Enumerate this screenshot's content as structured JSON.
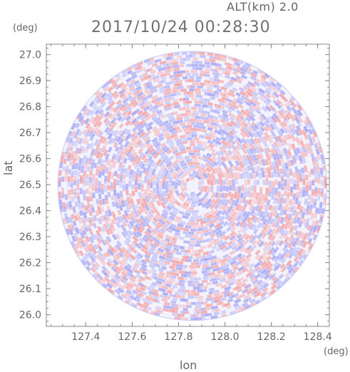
{
  "header": {
    "altitude_label": "ALT(km) 2.0",
    "timestamp": "2017/10/24 00:28:30"
  },
  "chart_data": {
    "type": "heatmap",
    "title": "2017/10/24 00:28:30",
    "xlabel": "lon",
    "ylabel": "lat",
    "x_unit": "(deg)",
    "y_unit": "(deg)",
    "xlim": [
      127.23,
      128.45
    ],
    "ylim": [
      25.955,
      27.04
    ],
    "x_ticks": [
      "127.4",
      "127.6",
      "127.8",
      "128.0",
      "128.2",
      "128.4"
    ],
    "x_tick_values": [
      127.4,
      127.6,
      127.8,
      128.0,
      128.2,
      128.4
    ],
    "y_ticks": [
      "26.0",
      "26.1",
      "26.2",
      "26.3",
      "26.4",
      "26.5",
      "26.6",
      "26.7",
      "26.8",
      "26.9",
      "27.0"
    ],
    "y_tick_values": [
      26.0,
      26.1,
      26.2,
      26.3,
      26.4,
      26.5,
      26.6,
      26.7,
      26.8,
      26.9,
      27.0
    ],
    "center": [
      127.86,
      26.495
    ],
    "radius_deg": 0.58,
    "colors": {
      "positive": "#f4a6a6",
      "negative": "#a9aaf4",
      "neutral": "#f3f3ff",
      "axis": "#888888",
      "text": "#666666"
    },
    "grid": false
  }
}
